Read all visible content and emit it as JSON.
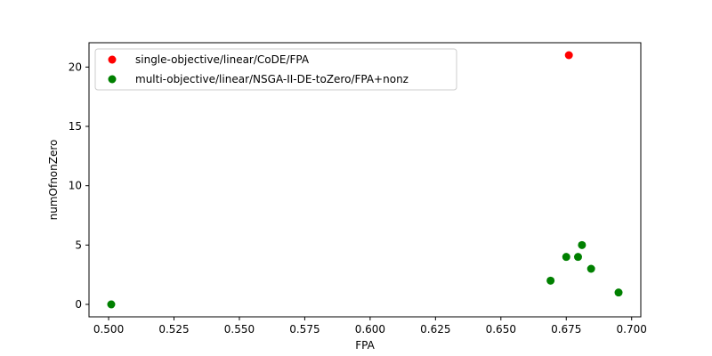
{
  "chart_data": {
    "type": "scatter",
    "title": "",
    "xlabel": "FPA",
    "ylabel": "numOfnonZero",
    "xlim": [
      0.4925,
      0.7035
    ],
    "ylim": [
      -1.05,
      22.05
    ],
    "xticks": [
      0.5,
      0.525,
      0.55,
      0.575,
      0.6,
      0.625,
      0.65,
      0.675,
      0.7
    ],
    "xtick_labels": [
      "0.500",
      "0.525",
      "0.550",
      "0.575",
      "0.600",
      "0.625",
      "0.650",
      "0.675",
      "0.700"
    ],
    "yticks": [
      0,
      5,
      10,
      15,
      20
    ],
    "ytick_labels": [
      "0",
      "5",
      "10",
      "15",
      "20"
    ],
    "grid": false,
    "legend_position": "top-left",
    "series": [
      {
        "name": "single-objective/linear/CoDE/FPA",
        "color": "#ff0000",
        "points": [
          [
            0.676,
            21
          ]
        ]
      },
      {
        "name": "multi-objective/linear/NSGA-II-DE-toZero/FPA+nonz",
        "color": "#008000",
        "points": [
          [
            0.501,
            0
          ],
          [
            0.669,
            2
          ],
          [
            0.675,
            4
          ],
          [
            0.6795,
            4
          ],
          [
            0.681,
            5
          ],
          [
            0.6845,
            3
          ],
          [
            0.695,
            1
          ]
        ]
      }
    ]
  }
}
